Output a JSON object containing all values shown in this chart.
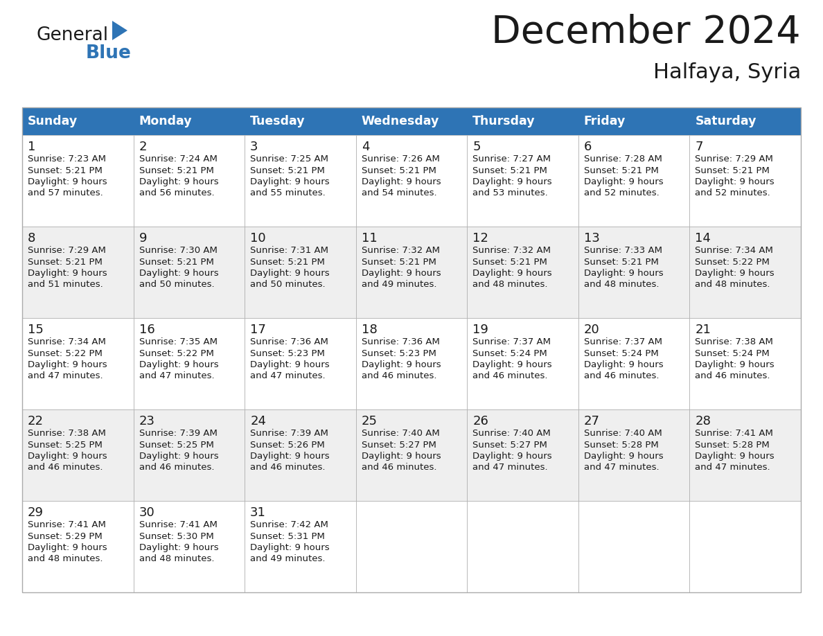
{
  "title": "December 2024",
  "subtitle": "Halfaya, Syria",
  "header_bg_color": "#2E74B5",
  "header_text_color": "#FFFFFF",
  "day_names": [
    "Sunday",
    "Monday",
    "Tuesday",
    "Wednesday",
    "Thursday",
    "Friday",
    "Saturday"
  ],
  "bg_color": "#FFFFFF",
  "cell_bg_even": "#EFEFEF",
  "cell_bg_odd": "#FFFFFF",
  "cell_text_color": "#1A1A1A",
  "grid_color": "#AAAAAA",
  "title_color": "#1A1A1A",
  "subtitle_color": "#1A1A1A",
  "logo_general_color": "#1A1A1A",
  "logo_blue_color": "#2E74B5",
  "logo_triangle_color": "#2E74B5",
  "days": [
    {
      "day": 1,
      "col": 0,
      "row": 0,
      "sunrise": "7:23 AM",
      "sunset": "5:21 PM",
      "daylight_min": "57 minutes."
    },
    {
      "day": 2,
      "col": 1,
      "row": 0,
      "sunrise": "7:24 AM",
      "sunset": "5:21 PM",
      "daylight_min": "56 minutes."
    },
    {
      "day": 3,
      "col": 2,
      "row": 0,
      "sunrise": "7:25 AM",
      "sunset": "5:21 PM",
      "daylight_min": "55 minutes."
    },
    {
      "day": 4,
      "col": 3,
      "row": 0,
      "sunrise": "7:26 AM",
      "sunset": "5:21 PM",
      "daylight_min": "54 minutes."
    },
    {
      "day": 5,
      "col": 4,
      "row": 0,
      "sunrise": "7:27 AM",
      "sunset": "5:21 PM",
      "daylight_min": "53 minutes."
    },
    {
      "day": 6,
      "col": 5,
      "row": 0,
      "sunrise": "7:28 AM",
      "sunset": "5:21 PM",
      "daylight_min": "52 minutes."
    },
    {
      "day": 7,
      "col": 6,
      "row": 0,
      "sunrise": "7:29 AM",
      "sunset": "5:21 PM",
      "daylight_min": "52 minutes."
    },
    {
      "day": 8,
      "col": 0,
      "row": 1,
      "sunrise": "7:29 AM",
      "sunset": "5:21 PM",
      "daylight_min": "51 minutes."
    },
    {
      "day": 9,
      "col": 1,
      "row": 1,
      "sunrise": "7:30 AM",
      "sunset": "5:21 PM",
      "daylight_min": "50 minutes."
    },
    {
      "day": 10,
      "col": 2,
      "row": 1,
      "sunrise": "7:31 AM",
      "sunset": "5:21 PM",
      "daylight_min": "50 minutes."
    },
    {
      "day": 11,
      "col": 3,
      "row": 1,
      "sunrise": "7:32 AM",
      "sunset": "5:21 PM",
      "daylight_min": "49 minutes."
    },
    {
      "day": 12,
      "col": 4,
      "row": 1,
      "sunrise": "7:32 AM",
      "sunset": "5:21 PM",
      "daylight_min": "48 minutes."
    },
    {
      "day": 13,
      "col": 5,
      "row": 1,
      "sunrise": "7:33 AM",
      "sunset": "5:21 PM",
      "daylight_min": "48 minutes."
    },
    {
      "day": 14,
      "col": 6,
      "row": 1,
      "sunrise": "7:34 AM",
      "sunset": "5:22 PM",
      "daylight_min": "48 minutes."
    },
    {
      "day": 15,
      "col": 0,
      "row": 2,
      "sunrise": "7:34 AM",
      "sunset": "5:22 PM",
      "daylight_min": "47 minutes."
    },
    {
      "day": 16,
      "col": 1,
      "row": 2,
      "sunrise": "7:35 AM",
      "sunset": "5:22 PM",
      "daylight_min": "47 minutes."
    },
    {
      "day": 17,
      "col": 2,
      "row": 2,
      "sunrise": "7:36 AM",
      "sunset": "5:23 PM",
      "daylight_min": "47 minutes."
    },
    {
      "day": 18,
      "col": 3,
      "row": 2,
      "sunrise": "7:36 AM",
      "sunset": "5:23 PM",
      "daylight_min": "46 minutes."
    },
    {
      "day": 19,
      "col": 4,
      "row": 2,
      "sunrise": "7:37 AM",
      "sunset": "5:24 PM",
      "daylight_min": "46 minutes."
    },
    {
      "day": 20,
      "col": 5,
      "row": 2,
      "sunrise": "7:37 AM",
      "sunset": "5:24 PM",
      "daylight_min": "46 minutes."
    },
    {
      "day": 21,
      "col": 6,
      "row": 2,
      "sunrise": "7:38 AM",
      "sunset": "5:24 PM",
      "daylight_min": "46 minutes."
    },
    {
      "day": 22,
      "col": 0,
      "row": 3,
      "sunrise": "7:38 AM",
      "sunset": "5:25 PM",
      "daylight_min": "46 minutes."
    },
    {
      "day": 23,
      "col": 1,
      "row": 3,
      "sunrise": "7:39 AM",
      "sunset": "5:25 PM",
      "daylight_min": "46 minutes."
    },
    {
      "day": 24,
      "col": 2,
      "row": 3,
      "sunrise": "7:39 AM",
      "sunset": "5:26 PM",
      "daylight_min": "46 minutes."
    },
    {
      "day": 25,
      "col": 3,
      "row": 3,
      "sunrise": "7:40 AM",
      "sunset": "5:27 PM",
      "daylight_min": "46 minutes."
    },
    {
      "day": 26,
      "col": 4,
      "row": 3,
      "sunrise": "7:40 AM",
      "sunset": "5:27 PM",
      "daylight_min": "47 minutes."
    },
    {
      "day": 27,
      "col": 5,
      "row": 3,
      "sunrise": "7:40 AM",
      "sunset": "5:28 PM",
      "daylight_min": "47 minutes."
    },
    {
      "day": 28,
      "col": 6,
      "row": 3,
      "sunrise": "7:41 AM",
      "sunset": "5:28 PM",
      "daylight_min": "47 minutes."
    },
    {
      "day": 29,
      "col": 0,
      "row": 4,
      "sunrise": "7:41 AM",
      "sunset": "5:29 PM",
      "daylight_min": "48 minutes."
    },
    {
      "day": 30,
      "col": 1,
      "row": 4,
      "sunrise": "7:41 AM",
      "sunset": "5:30 PM",
      "daylight_min": "48 minutes."
    },
    {
      "day": 31,
      "col": 2,
      "row": 4,
      "sunrise": "7:42 AM",
      "sunset": "5:31 PM",
      "daylight_min": "49 minutes."
    }
  ]
}
